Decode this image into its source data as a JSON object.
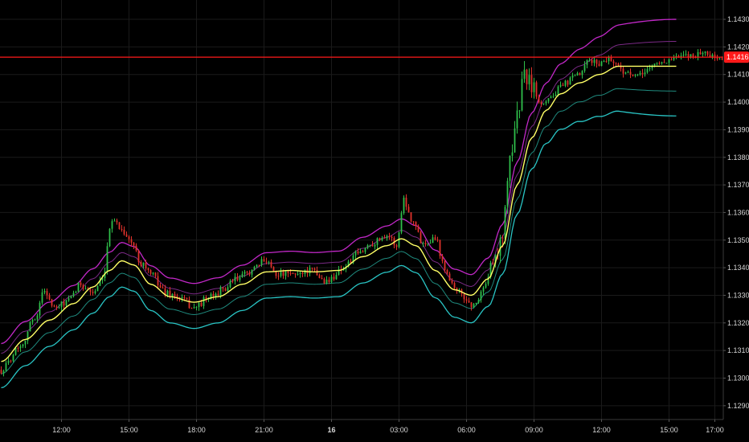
{
  "chart_data": {
    "type": "candlestick",
    "title": "",
    "xlabel": "",
    "ylabel": "",
    "grid": true,
    "ylim": [
      1.1285,
      1.1437
    ],
    "y_ticks": [
      "1.14300",
      "1.14200",
      "1.14100",
      "1.14000",
      "1.13900",
      "1.13800",
      "1.13700",
      "1.13600",
      "1.13500",
      "1.13400",
      "1.13300",
      "1.13200",
      "1.13100",
      "1.13000",
      "1.12900"
    ],
    "x_ticks": [
      {
        "label": "12:00",
        "bar": 25,
        "bold": false
      },
      {
        "label": "15:00",
        "bar": 53,
        "bold": false
      },
      {
        "label": "18:00",
        "bar": 81,
        "bold": false
      },
      {
        "label": "21:00",
        "bar": 109,
        "bold": false
      },
      {
        "label": "16",
        "bar": 137,
        "bold": true
      },
      {
        "label": "03:00",
        "bar": 165,
        "bold": false
      },
      {
        "label": "06:00",
        "bar": 193,
        "bold": false
      },
      {
        "label": "09:00",
        "bar": 221,
        "bold": false
      },
      {
        "label": "12:00",
        "bar": 249,
        "bold": false
      },
      {
        "label": "15:00",
        "bar": 277,
        "bold": false
      },
      {
        "label": "17:00",
        "bar": 296,
        "bold": false
      }
    ],
    "bar_count": 300,
    "current_price": "1.14163",
    "current_price_value": 1.14163,
    "colors": {
      "up": "#2fbf4a",
      "down": "#e0322b",
      "basis": "#ffff66",
      "upper_outer": "#c228c8",
      "upper_inner": "#7b2a86",
      "lower_inner": "#1f8a7e",
      "lower_outer": "#29c4c4",
      "price_line": "#ff1a1a",
      "grid": "#1a1a1a",
      "axis_text": "#d6d6d6"
    },
    "basis": [
      [
        0,
        1.1306
      ],
      [
        10,
        1.1314
      ],
      [
        20,
        1.1321
      ],
      [
        30,
        1.1327
      ],
      [
        38,
        1.1333
      ],
      [
        45,
        1.1339
      ],
      [
        50,
        1.13425
      ],
      [
        55,
        1.1341
      ],
      [
        62,
        1.1334
      ],
      [
        70,
        1.13295
      ],
      [
        80,
        1.13275
      ],
      [
        90,
        1.13295
      ],
      [
        100,
        1.1334
      ],
      [
        110,
        1.13385
      ],
      [
        120,
        1.1339
      ],
      [
        130,
        1.13385
      ],
      [
        140,
        1.1339
      ],
      [
        150,
        1.1344
      ],
      [
        160,
        1.1348
      ],
      [
        166,
        1.13505
      ],
      [
        172,
        1.1348
      ],
      [
        180,
        1.1339
      ],
      [
        188,
        1.1332
      ],
      [
        195,
        1.133
      ],
      [
        202,
        1.1336
      ],
      [
        208,
        1.1348
      ],
      [
        214,
        1.137
      ],
      [
        220,
        1.1387
      ],
      [
        226,
        1.1397
      ],
      [
        232,
        1.1403
      ],
      [
        240,
        1.1407
      ],
      [
        248,
        1.141
      ],
      [
        256,
        1.1413
      ],
      [
        264,
        1.1413
      ],
      [
        272,
        1.1413
      ],
      [
        280,
        1.1413
      ]
    ],
    "band_offsets": {
      "upper_outer": [
        [
          0,
          0.00065
        ],
        [
          140,
          0.0007
        ],
        [
          200,
          0.00075
        ],
        [
          280,
          0.0017
        ]
      ],
      "upper_inner": [
        [
          0,
          0.0003
        ],
        [
          140,
          0.0003
        ],
        [
          200,
          0.00032
        ],
        [
          280,
          0.0009
        ]
      ],
      "lower_inner": [
        [
          0,
          -0.00045
        ],
        [
          140,
          -0.00045
        ],
        [
          200,
          -0.00048
        ],
        [
          280,
          -0.0009
        ]
      ],
      "lower_outer": [
        [
          0,
          -0.00095
        ],
        [
          140,
          -0.00095
        ],
        [
          200,
          -0.001
        ],
        [
          280,
          -0.0018
        ]
      ]
    },
    "price_path": [
      [
        0,
        1.1303
      ],
      [
        8,
        1.1312
      ],
      [
        14,
        1.1322
      ],
      [
        18,
        1.1332
      ],
      [
        22,
        1.1325
      ],
      [
        28,
        1.1328
      ],
      [
        33,
        1.1334
      ],
      [
        38,
        1.1331
      ],
      [
        42,
        1.1335
      ],
      [
        46,
        1.1358
      ],
      [
        50,
        1.1354
      ],
      [
        54,
        1.1349
      ],
      [
        58,
        1.1342
      ],
      [
        63,
        1.1337
      ],
      [
        68,
        1.1331
      ],
      [
        74,
        1.1329
      ],
      [
        80,
        1.13255
      ],
      [
        86,
        1.1329
      ],
      [
        92,
        1.1332
      ],
      [
        98,
        1.1336
      ],
      [
        104,
        1.1339
      ],
      [
        110,
        1.1343
      ],
      [
        114,
        1.1338
      ],
      [
        120,
        1.13375
      ],
      [
        128,
        1.1339
      ],
      [
        135,
        1.1335
      ],
      [
        142,
        1.134
      ],
      [
        148,
        1.1345
      ],
      [
        154,
        1.1349
      ],
      [
        160,
        1.1352
      ],
      [
        164,
        1.1348
      ],
      [
        167,
        1.1365
      ],
      [
        170,
        1.1358
      ],
      [
        175,
        1.1349
      ],
      [
        180,
        1.1351
      ],
      [
        184,
        1.134
      ],
      [
        188,
        1.1333
      ],
      [
        192,
        1.1329
      ],
      [
        196,
        1.1326
      ],
      [
        200,
        1.13325
      ],
      [
        204,
        1.1342
      ],
      [
        208,
        1.1352
      ],
      [
        211,
        1.138
      ],
      [
        214,
        1.1395
      ],
      [
        217,
        1.141
      ],
      [
        220,
        1.1406
      ],
      [
        224,
        1.14
      ],
      [
        228,
        1.1402
      ],
      [
        232,
        1.1405
      ],
      [
        236,
        1.1408
      ],
      [
        240,
        1.141
      ],
      [
        244,
        1.1415
      ],
      [
        248,
        1.1414
      ],
      [
        252,
        1.1416
      ],
      [
        256,
        1.1413
      ],
      [
        260,
        1.141
      ],
      [
        264,
        1.1409
      ],
      [
        268,
        1.1412
      ],
      [
        272,
        1.1414
      ],
      [
        276,
        1.1415
      ],
      [
        280,
        1.1416
      ],
      [
        286,
        1.1417
      ],
      [
        292,
        1.1418
      ],
      [
        296,
        1.1416
      ],
      [
        299,
        1.1416
      ]
    ]
  }
}
